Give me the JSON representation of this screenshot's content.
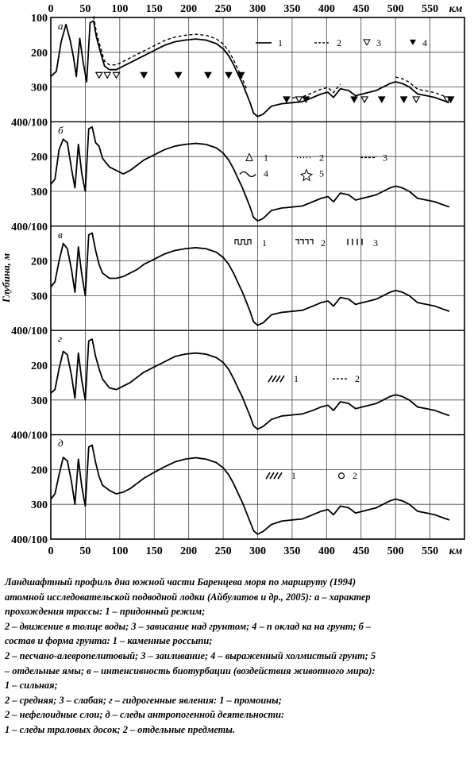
{
  "chart_data": {
    "type": "line",
    "x_unit": "км",
    "y_axis_label": "Глубина, м",
    "xlim": [
      0,
      600
    ],
    "x_ticks": [
      0,
      50,
      100,
      150,
      200,
      250,
      300,
      350,
      400,
      450,
      500,
      550,
      600
    ],
    "x_ticks_bottom": [
      0,
      50,
      100,
      150,
      200,
      250,
      300,
      350,
      400,
      450,
      500,
      550
    ],
    "y_ticks_left": [
      "100",
      "200",
      "300",
      "400/100",
      "200",
      "300",
      "400/100",
      "200",
      "300",
      "400/100",
      "200",
      "300",
      "400/100",
      "200",
      "300",
      "400/100",
      "200",
      "300",
      "400"
    ],
    "ylim_each_panel": [
      100,
      400
    ],
    "x_axis_unit_bottom": "км",
    "panels": [
      {
        "letter": "а",
        "profile": {
          "x": [
            0,
            8,
            15,
            22,
            28,
            33,
            37,
            42,
            47,
            52,
            57,
            62,
            66,
            72,
            78,
            85,
            95,
            105,
            115,
            125,
            135,
            150,
            165,
            180,
            195,
            210,
            225,
            240,
            250,
            258,
            265,
            272,
            278,
            284,
            289,
            294,
            300,
            308,
            320,
            335,
            350,
            365,
            380,
            392,
            402,
            410,
            420,
            432,
            442,
            452,
            462,
            472,
            482,
            492,
            500,
            510,
            520,
            532,
            545,
            557,
            568,
            578
          ],
          "y": [
            270,
            255,
            170,
            120,
            165,
            215,
            270,
            160,
            230,
            285,
            115,
            110,
            155,
            200,
            240,
            250,
            250,
            240,
            230,
            220,
            210,
            195,
            180,
            170,
            165,
            162,
            165,
            175,
            190,
            210,
            235,
            265,
            290,
            320,
            345,
            375,
            385,
            378,
            355,
            348,
            345,
            342,
            330,
            320,
            315,
            330,
            305,
            310,
            325,
            320,
            315,
            310,
            300,
            290,
            285,
            290,
            300,
            320,
            325,
            330,
            338,
            345
          ]
        },
        "dashed_segments": [
          [
            60,
            285
          ],
          [
            345,
            420
          ],
          [
            495,
            580
          ]
        ],
        "legend": [
          "1",
          "2",
          "3",
          "4"
        ],
        "markers_open": [
          70,
          82,
          95,
          360,
          455,
          530,
          575
        ],
        "markers_filled": [
          135,
          185,
          228,
          258,
          276,
          342,
          370,
          440,
          480,
          512,
          580
        ]
      },
      {
        "letter": "б",
        "profile": {
          "x": [
            0,
            6,
            12,
            18,
            24,
            30,
            35,
            40,
            45,
            50,
            55,
            60,
            65,
            70,
            75,
            85,
            95,
            105,
            115,
            125,
            135,
            150,
            165,
            180,
            195,
            210,
            225,
            240,
            250,
            258,
            265,
            272,
            278,
            284,
            289,
            294,
            300,
            308,
            320,
            335,
            350,
            365,
            380,
            392,
            402,
            410,
            420,
            432,
            442,
            452,
            462,
            472,
            482,
            492,
            500,
            510,
            520,
            532,
            545,
            557,
            568,
            578
          ],
          "y": [
            280,
            265,
            180,
            150,
            160,
            235,
            290,
            165,
            250,
            300,
            120,
            115,
            160,
            170,
            205,
            230,
            240,
            250,
            240,
            225,
            210,
            195,
            180,
            170,
            165,
            162,
            165,
            175,
            190,
            210,
            235,
            265,
            290,
            320,
            345,
            375,
            385,
            378,
            355,
            348,
            345,
            342,
            330,
            320,
            315,
            330,
            305,
            310,
            325,
            320,
            315,
            310,
            300,
            290,
            285,
            290,
            300,
            320,
            325,
            330,
            338,
            345
          ]
        },
        "legend": [
          "1",
          "2",
          "3",
          "4",
          "5"
        ]
      },
      {
        "letter": "в",
        "profile": {
          "x": [
            0,
            6,
            12,
            18,
            24,
            30,
            35,
            40,
            45,
            50,
            55,
            60,
            65,
            70,
            75,
            85,
            95,
            105,
            115,
            125,
            135,
            150,
            165,
            180,
            195,
            210,
            225,
            240,
            250,
            258,
            265,
            272,
            278,
            284,
            289,
            294,
            300,
            308,
            320,
            335,
            350,
            365,
            380,
            392,
            402,
            410,
            420,
            432,
            442,
            452,
            462,
            472,
            482,
            492,
            500,
            510,
            520,
            532,
            545,
            557,
            568,
            578
          ],
          "y": [
            275,
            260,
            200,
            150,
            165,
            225,
            290,
            160,
            240,
            300,
            125,
            120,
            170,
            210,
            235,
            250,
            250,
            245,
            235,
            225,
            210,
            195,
            180,
            170,
            165,
            162,
            165,
            175,
            190,
            210,
            235,
            265,
            290,
            320,
            345,
            375,
            385,
            378,
            355,
            348,
            345,
            342,
            330,
            320,
            315,
            330,
            305,
            310,
            325,
            320,
            315,
            310,
            300,
            290,
            285,
            290,
            300,
            320,
            325,
            330,
            338,
            345
          ]
        },
        "legend": [
          "1",
          "2",
          "3"
        ]
      },
      {
        "letter": "г",
        "profile": {
          "x": [
            0,
            6,
            12,
            18,
            24,
            30,
            35,
            40,
            45,
            50,
            55,
            60,
            65,
            70,
            75,
            85,
            95,
            105,
            115,
            125,
            135,
            150,
            165,
            180,
            195,
            210,
            225,
            240,
            250,
            258,
            265,
            272,
            278,
            284,
            289,
            294,
            300,
            308,
            320,
            335,
            350,
            365,
            380,
            392,
            402,
            410,
            420,
            432,
            442,
            452,
            462,
            472,
            482,
            492,
            500,
            510,
            520,
            532,
            545,
            557,
            568,
            578
          ],
          "y": [
            280,
            270,
            210,
            160,
            170,
            230,
            295,
            165,
            245,
            300,
            130,
            125,
            175,
            210,
            240,
            265,
            270,
            260,
            250,
            235,
            220,
            205,
            190,
            175,
            168,
            165,
            168,
            178,
            192,
            212,
            238,
            268,
            292,
            322,
            346,
            374,
            384,
            376,
            356,
            346,
            343,
            340,
            330,
            320,
            315,
            330,
            305,
            310,
            325,
            320,
            315,
            310,
            300,
            290,
            285,
            290,
            300,
            320,
            325,
            330,
            338,
            345
          ]
        },
        "legend": [
          "1",
          "2"
        ]
      },
      {
        "letter": "д",
        "profile": {
          "x": [
            0,
            6,
            12,
            18,
            24,
            30,
            35,
            40,
            45,
            50,
            55,
            60,
            65,
            70,
            75,
            85,
            95,
            105,
            115,
            125,
            135,
            150,
            165,
            180,
            195,
            210,
            225,
            240,
            250,
            258,
            265,
            272,
            278,
            284,
            289,
            294,
            300,
            308,
            320,
            335,
            350,
            365,
            380,
            392,
            402,
            410,
            420,
            432,
            442,
            452,
            462,
            472,
            482,
            492,
            500,
            510,
            520,
            532,
            545,
            557,
            568,
            578
          ],
          "y": [
            285,
            270,
            215,
            165,
            175,
            235,
            300,
            170,
            250,
            305,
            135,
            130,
            180,
            220,
            245,
            260,
            270,
            265,
            255,
            240,
            225,
            208,
            192,
            178,
            170,
            166,
            170,
            180,
            195,
            215,
            240,
            270,
            295,
            325,
            350,
            376,
            386,
            378,
            358,
            348,
            345,
            342,
            330,
            320,
            315,
            330,
            305,
            310,
            325,
            320,
            315,
            310,
            300,
            290,
            285,
            290,
            300,
            320,
            325,
            330,
            338,
            345
          ]
        },
        "legend": [
          "1",
          "2"
        ]
      }
    ]
  },
  "caption": {
    "lines": [
      "Ландшафтный профиль дна южной части Баренцева моря по маршруту (1994)",
      "атомной исследовательской подводной лодки (Айбулатов и др., 2005): а – характер",
      "прохождения трассы: 1 – придонный режим;",
      "2 – движение в толще воды; 3 – зависание над грунтом; 4 – п оклад ка на грунт; б –",
      "состав и форма грунта: 1 – каменные россыпи;",
      "2 – песчано-алевропелитовый; 3 – заиливание; 4 – выраженный холмистый грунт; 5",
      "– отдельные ямы; в – интенсивность биотурбации (воздействия животного мира):",
      "1 – сильная;",
      "2 – средняя; 3 – слабая; г – гидрогенные явления: 1 – промоины;",
      "2 – нефелоидные слои; д – следы антропогенной деятельности:",
      "1 – следы траловых досок; 2 – отдельные предметы."
    ]
  }
}
